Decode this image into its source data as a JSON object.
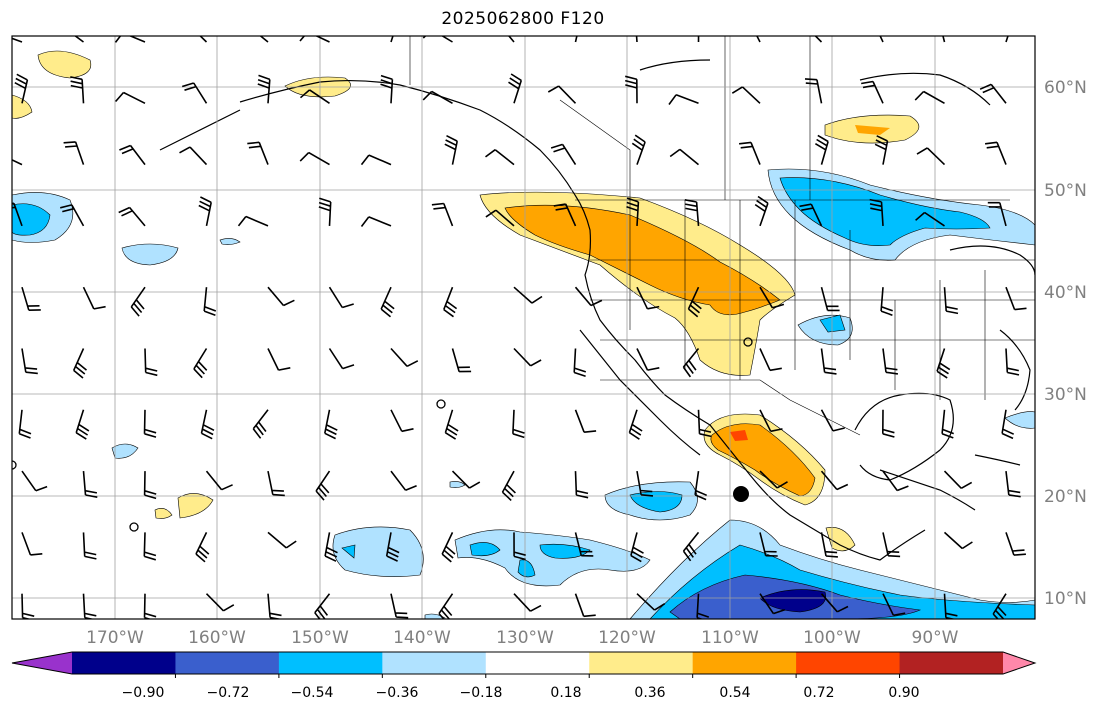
{
  "title": "2025062800 F120",
  "lat_labels": [
    "60°N",
    "50°N",
    "40°N",
    "30°N",
    "20°N",
    "10°N"
  ],
  "lon_labels": [
    "170°W",
    "160°W",
    "150°W",
    "140°W",
    "130°W",
    "120°W",
    "110°W",
    "100°W",
    "90°W"
  ],
  "colorbar": {
    "tick_labels": [
      "−0.90",
      "−0.72",
      "−0.54",
      "−0.36",
      "−0.18",
      "0.18",
      "0.36",
      "0.54",
      "0.72",
      "0.90"
    ],
    "colors": [
      "#9932cc",
      "#00008b",
      "#3a5fcd",
      "#00bfff",
      "#b0e2ff",
      "#ffffff",
      "#ffec8b",
      "#ffa500",
      "#ff4500",
      "#b22222",
      "#ff88aa"
    ]
  },
  "map_extent": {
    "lon_min": -180,
    "lon_max": -80,
    "lat_min": 8,
    "lat_max": 65
  }
}
